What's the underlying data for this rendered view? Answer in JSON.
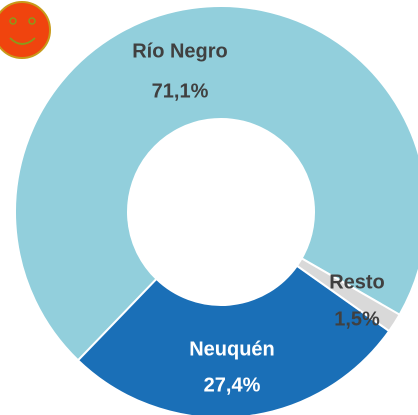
{
  "chart_data": {
    "type": "donut",
    "categories": [
      "Río Negro",
      "Neuquén",
      "Resto"
    ],
    "values": [
      71.1,
      27.4,
      1.5
    ],
    "value_labels": [
      "71,1%",
      "27,4%",
      "1,5%"
    ],
    "colors": [
      "#92cfdc",
      "#1a6fb7",
      "#d9d9d9"
    ]
  }
}
